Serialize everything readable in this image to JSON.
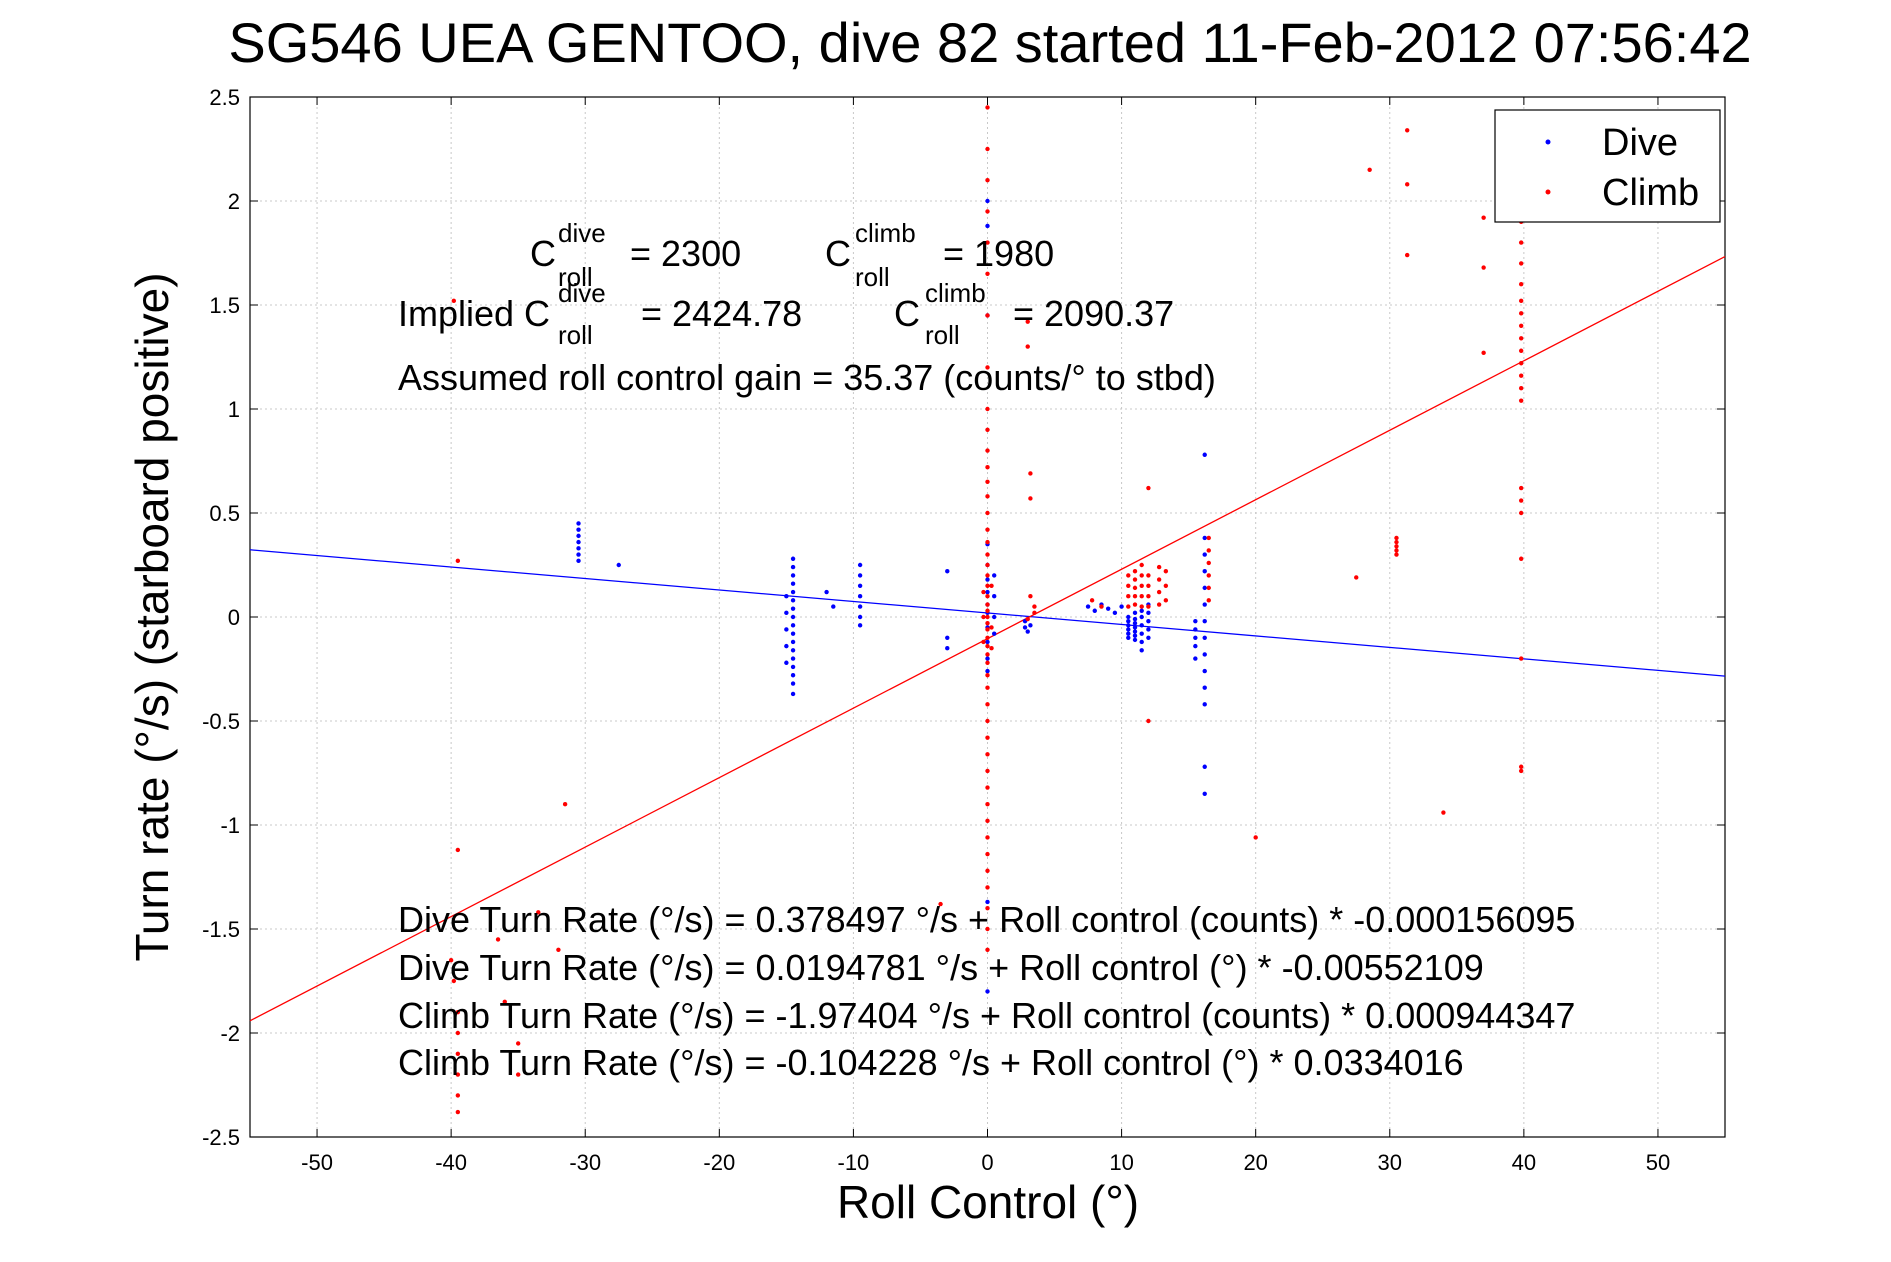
{
  "chart_data": {
    "type": "scatter",
    "title": "SG546 UEA GENTOO, dive 82 started 11-Feb-2012 07:56:42",
    "xlabel": "Roll Control (°)",
    "ylabel": "Turn rate (°/s) (starboard positive)",
    "xlim": [
      -55,
      55
    ],
    "ylim": [
      -2.5,
      2.5
    ],
    "xticks": [
      -50,
      -40,
      -30,
      -20,
      -10,
      0,
      10,
      20,
      30,
      40,
      50
    ],
    "yticks": [
      2.5,
      2,
      1.5,
      1,
      0.5,
      0,
      -0.5,
      -1,
      -1.5,
      -2,
      -2.5
    ],
    "xtick_labels": [
      "-50",
      "-40",
      "-30",
      "-20",
      "-10",
      "0",
      "10",
      "20",
      "30",
      "40",
      "50"
    ],
    "ytick_labels": [
      "2.5",
      "2",
      "1.5",
      "1",
      "0.5",
      "0",
      "-0.5",
      "-1",
      "-1.5",
      "-2",
      "-2.5"
    ],
    "grid": true,
    "legend_position": "top-right",
    "colors": {
      "dive": "#0000ff",
      "climb": "#ff0000"
    },
    "series": [
      {
        "name": "Dive",
        "color": "#0000ff",
        "points": [
          [
            -30.5,
            0.45
          ],
          [
            -30.5,
            0.42
          ],
          [
            -30.5,
            0.39
          ],
          [
            -30.5,
            0.36
          ],
          [
            -30.5,
            0.33
          ],
          [
            -30.5,
            0.3
          ],
          [
            -30.5,
            0.27
          ],
          [
            -27.5,
            0.25
          ],
          [
            -14.5,
            0.28
          ],
          [
            -14.5,
            0.24
          ],
          [
            -14.5,
            0.2
          ],
          [
            -14.5,
            0.16
          ],
          [
            -14.5,
            0.12
          ],
          [
            -14.5,
            0.08
          ],
          [
            -14.5,
            0.04
          ],
          [
            -14.5,
            0.0
          ],
          [
            -14.5,
            -0.04
          ],
          [
            -14.5,
            -0.08
          ],
          [
            -14.5,
            -0.12
          ],
          [
            -14.5,
            -0.16
          ],
          [
            -14.5,
            -0.2
          ],
          [
            -14.5,
            -0.24
          ],
          [
            -14.5,
            -0.28
          ],
          [
            -14.5,
            -0.32
          ],
          [
            -14.5,
            -0.37
          ],
          [
            -15.0,
            0.1
          ],
          [
            -15.0,
            0.02
          ],
          [
            -15.0,
            -0.06
          ],
          [
            -15.0,
            -0.14
          ],
          [
            -15.0,
            -0.22
          ],
          [
            -12,
            0.12
          ],
          [
            -11.5,
            0.05
          ],
          [
            -9.5,
            0.25
          ],
          [
            -9.5,
            0.2
          ],
          [
            -9.5,
            0.15
          ],
          [
            -9.5,
            0.1
          ],
          [
            -9.5,
            0.05
          ],
          [
            -9.5,
            0.0
          ],
          [
            -9.5,
            -0.04
          ],
          [
            -3,
            0.22
          ],
          [
            -3,
            -0.1
          ],
          [
            -3,
            -0.15
          ],
          [
            0,
            2.0
          ],
          [
            0,
            1.88
          ],
          [
            0,
            1.45
          ],
          [
            0,
            0.35
          ],
          [
            0,
            0.25
          ],
          [
            0,
            0.18
          ],
          [
            0,
            0.12
          ],
          [
            0,
            0.06
          ],
          [
            0,
            0.02
          ],
          [
            0,
            -0.05
          ],
          [
            0,
            -0.12
          ],
          [
            0,
            -0.2
          ],
          [
            0,
            -0.26
          ],
          [
            0,
            -1.37
          ],
          [
            0,
            -1.8
          ],
          [
            0.5,
            0.2
          ],
          [
            0.5,
            0.1
          ],
          [
            0.5,
            0.0
          ],
          [
            0.5,
            -0.08
          ],
          [
            2.8,
            -0.02
          ],
          [
            2.8,
            -0.05
          ],
          [
            3.0,
            -0.07
          ],
          [
            3.2,
            -0.04
          ],
          [
            7.5,
            0.05
          ],
          [
            8.0,
            0.03
          ],
          [
            8.5,
            0.06
          ],
          [
            9.0,
            0.04
          ],
          [
            9.5,
            0.02
          ],
          [
            10.0,
            0.05
          ],
          [
            10.5,
            0.0
          ],
          [
            10.5,
            -0.02
          ],
          [
            10.5,
            -0.04
          ],
          [
            10.5,
            -0.06
          ],
          [
            10.5,
            -0.08
          ],
          [
            10.5,
            -0.1
          ],
          [
            11.0,
            0.02
          ],
          [
            11.0,
            -0.01
          ],
          [
            11.0,
            -0.03
          ],
          [
            11.0,
            -0.05
          ],
          [
            11.0,
            -0.07
          ],
          [
            11.0,
            -0.09
          ],
          [
            11.0,
            -0.11
          ],
          [
            11.5,
            0.03
          ],
          [
            11.5,
            0.0
          ],
          [
            11.5,
            -0.04
          ],
          [
            11.5,
            -0.08
          ],
          [
            11.5,
            -0.12
          ],
          [
            11.5,
            -0.16
          ],
          [
            12.0,
            0.06
          ],
          [
            12.0,
            0.02
          ],
          [
            12.0,
            -0.02
          ],
          [
            12.0,
            -0.06
          ],
          [
            12.0,
            -0.1
          ],
          [
            15.5,
            -0.02
          ],
          [
            15.5,
            -0.06
          ],
          [
            15.5,
            -0.1
          ],
          [
            15.5,
            -0.14
          ],
          [
            15.5,
            -0.2
          ],
          [
            16.2,
            0.78
          ],
          [
            16.2,
            0.38
          ],
          [
            16.2,
            0.3
          ],
          [
            16.2,
            0.22
          ],
          [
            16.2,
            0.14
          ],
          [
            16.2,
            0.06
          ],
          [
            16.2,
            -0.02
          ],
          [
            16.2,
            -0.1
          ],
          [
            16.2,
            -0.18
          ],
          [
            16.2,
            -0.26
          ],
          [
            16.2,
            -0.34
          ],
          [
            16.2,
            -0.42
          ],
          [
            16.2,
            -0.72
          ],
          [
            16.2,
            -0.85
          ]
        ],
        "fit": {
          "intercept": 0.0194781,
          "slope": -0.00552109
        }
      },
      {
        "name": "Climb",
        "color": "#ff0000",
        "points": [
          [
            -39.8,
            1.52
          ],
          [
            -39.5,
            0.27
          ],
          [
            -39.5,
            -1.12
          ],
          [
            -40.0,
            -1.65
          ],
          [
            -39.8,
            -1.75
          ],
          [
            -39.5,
            -1.9
          ],
          [
            -39.5,
            -2.0
          ],
          [
            -39.5,
            -2.1
          ],
          [
            -39.5,
            -2.2
          ],
          [
            -39.5,
            -2.3
          ],
          [
            -39.5,
            -2.38
          ],
          [
            -36.5,
            -1.55
          ],
          [
            -36.0,
            -1.85
          ],
          [
            -35,
            -2.05
          ],
          [
            -35,
            -2.2
          ],
          [
            -33.5,
            -1.42
          ],
          [
            -32,
            -1.6
          ],
          [
            -31.5,
            -0.9
          ],
          [
            -3.5,
            -1.38
          ],
          [
            0,
            2.45
          ],
          [
            0,
            2.25
          ],
          [
            0,
            2.1
          ],
          [
            0,
            1.95
          ],
          [
            0,
            1.8
          ],
          [
            0,
            1.65
          ],
          [
            0,
            1.45
          ],
          [
            0,
            1.2
          ],
          [
            0,
            1.0
          ],
          [
            0,
            0.9
          ],
          [
            0,
            0.8
          ],
          [
            0,
            0.72
          ],
          [
            0,
            0.65
          ],
          [
            0,
            0.58
          ],
          [
            0,
            0.5
          ],
          [
            0,
            0.42
          ],
          [
            0,
            0.36
          ],
          [
            0,
            0.3
          ],
          [
            0,
            0.25
          ],
          [
            0,
            0.2
          ],
          [
            0,
            0.15
          ],
          [
            0,
            0.1
          ],
          [
            0,
            0.06
          ],
          [
            0,
            0.03
          ],
          [
            0,
            0.0
          ],
          [
            0,
            -0.03
          ],
          [
            0,
            -0.06
          ],
          [
            0,
            -0.1
          ],
          [
            0,
            -0.14
          ],
          [
            0,
            -0.18
          ],
          [
            0,
            -0.22
          ],
          [
            0,
            -0.28
          ],
          [
            0,
            -0.34
          ],
          [
            0,
            -0.42
          ],
          [
            0,
            -0.5
          ],
          [
            0,
            -0.58
          ],
          [
            0,
            -0.66
          ],
          [
            0,
            -0.74
          ],
          [
            0,
            -0.82
          ],
          [
            0,
            -0.9
          ],
          [
            0,
            -0.98
          ],
          [
            0,
            -1.06
          ],
          [
            0,
            -1.14
          ],
          [
            0,
            -1.22
          ],
          [
            0,
            -1.3
          ],
          [
            0,
            -1.4
          ],
          [
            0,
            -1.5
          ],
          [
            0,
            -1.6
          ],
          [
            -0.3,
            0.12
          ],
          [
            -0.3,
            0.0
          ],
          [
            -0.3,
            -0.12
          ],
          [
            0.3,
            0.15
          ],
          [
            0.3,
            -0.05
          ],
          [
            0.3,
            -0.15
          ],
          [
            3.0,
            1.42
          ],
          [
            3.0,
            1.3
          ],
          [
            3.2,
            0.69
          ],
          [
            3.2,
            0.57
          ],
          [
            3.2,
            0.1
          ],
          [
            3.5,
            0.05
          ],
          [
            3.5,
            0.02
          ],
          [
            3.0,
            -0.01
          ],
          [
            7.8,
            0.08
          ],
          [
            8.5,
            0.05
          ],
          [
            10.5,
            0.2
          ],
          [
            10.5,
            0.15
          ],
          [
            10.5,
            0.1
          ],
          [
            10.5,
            0.05
          ],
          [
            11.0,
            0.22
          ],
          [
            11.0,
            0.18
          ],
          [
            11.0,
            0.14
          ],
          [
            11.0,
            0.1
          ],
          [
            11.0,
            0.06
          ],
          [
            11.5,
            0.25
          ],
          [
            11.5,
            0.2
          ],
          [
            11.5,
            0.15
          ],
          [
            11.5,
            0.1
          ],
          [
            11.5,
            0.05
          ],
          [
            12.0,
            0.62
          ],
          [
            12.0,
            0.2
          ],
          [
            12.0,
            0.15
          ],
          [
            12.0,
            0.1
          ],
          [
            12.0,
            0.05
          ],
          [
            12.0,
            -0.5
          ],
          [
            12.8,
            0.24
          ],
          [
            12.8,
            0.18
          ],
          [
            12.8,
            0.12
          ],
          [
            12.8,
            0.06
          ],
          [
            13.3,
            0.22
          ],
          [
            13.3,
            0.15
          ],
          [
            13.3,
            0.08
          ],
          [
            16.5,
            0.38
          ],
          [
            16.5,
            0.32
          ],
          [
            16.5,
            0.26
          ],
          [
            16.5,
            0.2
          ],
          [
            16.5,
            0.14
          ],
          [
            16.5,
            0.08
          ],
          [
            20,
            -1.06
          ],
          [
            27.5,
            0.19
          ],
          [
            28.5,
            2.15
          ],
          [
            30.5,
            0.38
          ],
          [
            30.5,
            0.36
          ],
          [
            30.5,
            0.34
          ],
          [
            30.5,
            0.32
          ],
          [
            30.5,
            0.3
          ],
          [
            31.3,
            2.34
          ],
          [
            31.3,
            2.08
          ],
          [
            31.3,
            1.74
          ],
          [
            34,
            -0.94
          ],
          [
            37.0,
            1.92
          ],
          [
            37.0,
            1.68
          ],
          [
            37.0,
            1.27
          ],
          [
            39.8,
            2.02
          ],
          [
            39.8,
            1.9
          ],
          [
            39.8,
            1.8
          ],
          [
            39.8,
            1.7
          ],
          [
            39.8,
            1.6
          ],
          [
            39.8,
            1.52
          ],
          [
            39.8,
            1.46
          ],
          [
            39.8,
            1.4
          ],
          [
            39.8,
            1.34
          ],
          [
            39.8,
            1.28
          ],
          [
            39.8,
            1.22
          ],
          [
            39.8,
            1.16
          ],
          [
            39.8,
            1.1
          ],
          [
            39.8,
            1.04
          ],
          [
            39.8,
            0.62
          ],
          [
            39.8,
            0.56
          ],
          [
            39.8,
            0.5
          ],
          [
            39.8,
            0.28
          ],
          [
            39.8,
            -0.2
          ],
          [
            39.8,
            -0.72
          ],
          [
            39.8,
            -0.74
          ]
        ],
        "fit": {
          "intercept": -0.104228,
          "slope": 0.0334016
        }
      }
    ],
    "annotations": {
      "c_dive_base": "C",
      "c_dive_sup": "dive",
      "c_dive_sub": "roll",
      "c_dive_val": "= 2300",
      "c_climb_base": "C",
      "c_climb_sup": "climb",
      "c_climb_sub": "roll",
      "c_climb_val": "= 1980",
      "implied_prefix": "Implied C",
      "implied_dive_sup": "dive",
      "implied_dive_sub": "roll",
      "implied_dive_val": "= 2424.78",
      "implied_climb_base": "C",
      "implied_climb_sup": "climb",
      "implied_climb_sub": "roll",
      "implied_climb_val": "= 2090.37",
      "gain": "Assumed roll control gain = 35.37 (counts/° to stbd)",
      "eq1": "Dive Turn Rate (°/s) = 0.378497 °/s + Roll control (counts) * -0.000156095",
      "eq2": "Dive Turn Rate (°/s) = 0.0194781 °/s + Roll control (°) * -0.00552109",
      "eq3": "Climb Turn Rate (°/s) = -1.97404 °/s + Roll control (counts) * 0.000944347",
      "eq4": "Climb Turn Rate (°/s) = -0.104228 °/s + Roll control (°) * 0.0334016"
    }
  }
}
